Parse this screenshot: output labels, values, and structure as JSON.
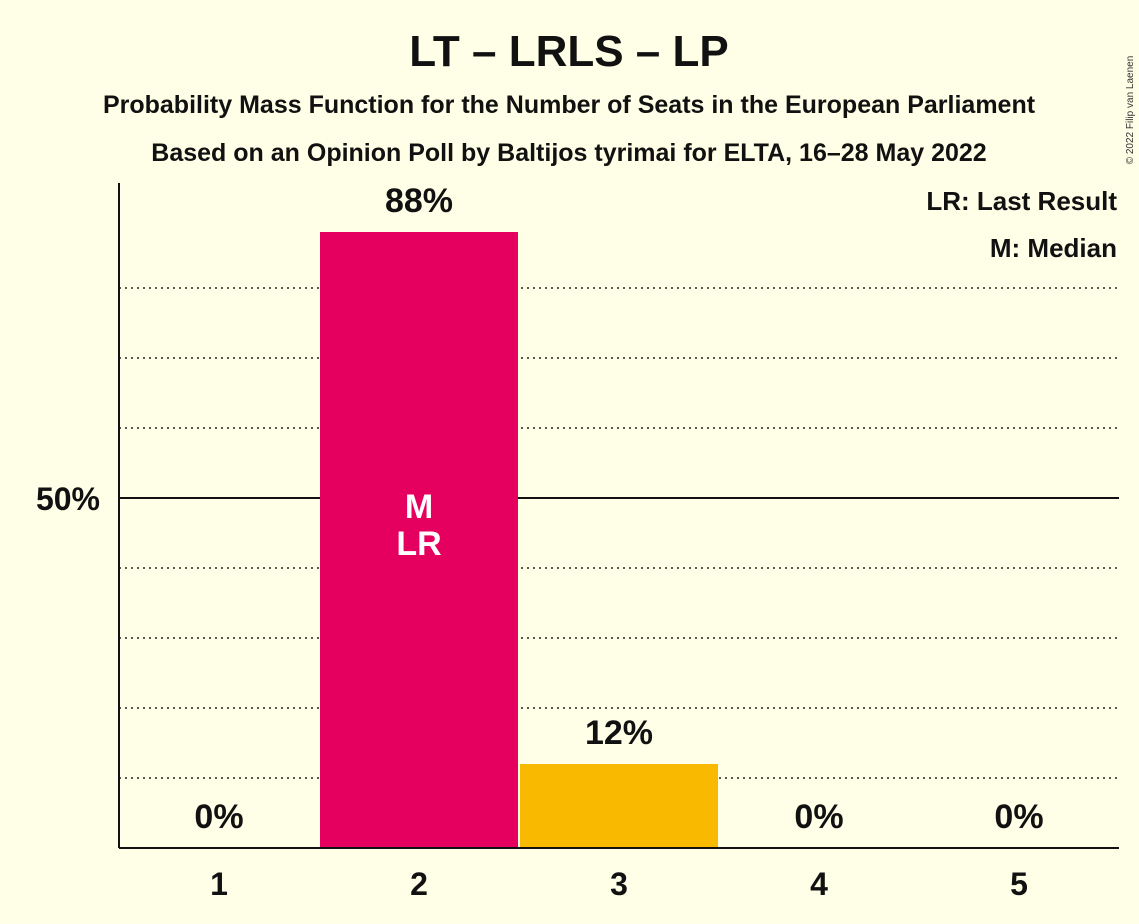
{
  "title": "LT – LRLS – LP",
  "subtitle_1": "Probability Mass Function for the Number of Seats in the European Parliament",
  "subtitle_2": "Based on an Opinion Poll by Baltijos tyrimai for ELTA, 16–28 May 2022",
  "legend": {
    "last_result": "LR: Last Result",
    "median": "M: Median"
  },
  "copyright": "© 2022 Filip van Laenen",
  "chart_data": {
    "type": "bar",
    "categories": [
      "1",
      "2",
      "3",
      "4",
      "5"
    ],
    "values": [
      0,
      88,
      12,
      0,
      0
    ],
    "value_labels": [
      "0%",
      "88%",
      "12%",
      "0%",
      "0%"
    ],
    "bar_colors": [
      "#E5005F",
      "#E5005F",
      "#F9B900",
      "#E5005F",
      "#E5005F"
    ],
    "in_bar_labels": [
      "",
      "M\nLR",
      "",
      "",
      ""
    ],
    "ylim": [
      0,
      95
    ],
    "yticks": [
      {
        "value": 50,
        "label": "50%"
      }
    ],
    "gridlines": [
      10,
      20,
      30,
      40,
      60,
      70,
      80
    ],
    "major_gridline": 50,
    "xlabel": "",
    "ylabel": ""
  }
}
